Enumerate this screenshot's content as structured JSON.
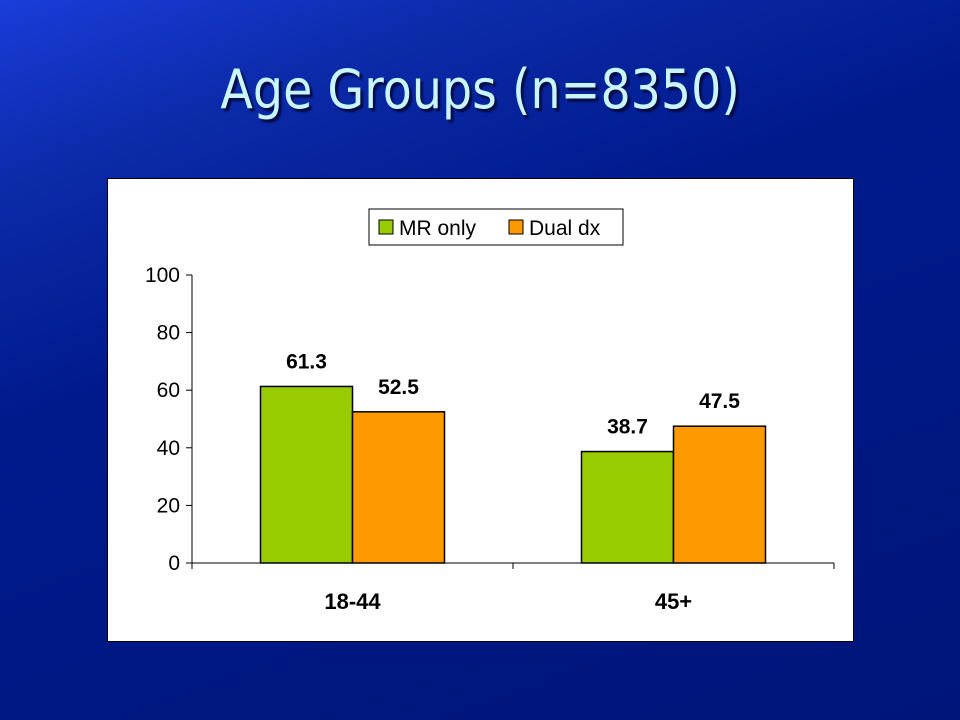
{
  "slide": {
    "title": "Age Groups (n=8350)",
    "background": "#00157a",
    "title_color": "#c8f5ff"
  },
  "chart_data": {
    "type": "bar",
    "title": "",
    "categories": [
      "18-44",
      "45+"
    ],
    "series": [
      {
        "name": "MR only",
        "values": [
          61.3,
          38.7
        ],
        "color": "#99cc00"
      },
      {
        "name": "Dual dx",
        "values": [
          52.5,
          47.5
        ],
        "color": "#ff9900"
      }
    ],
    "ylim": [
      0,
      100
    ],
    "yticks": [
      0,
      20,
      40,
      60,
      80,
      100
    ],
    "grid": false,
    "legend": "top-center",
    "data_labels": true
  }
}
